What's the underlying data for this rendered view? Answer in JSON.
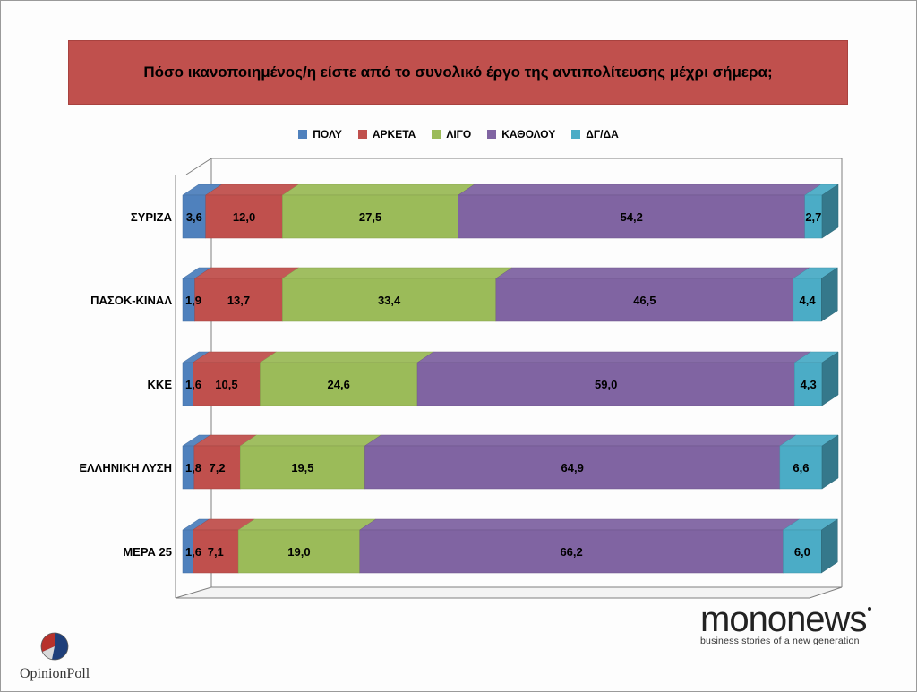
{
  "title": "Πόσο ικανοποιημένος/η είστε από το συνολικό έργο της αντιπολίτευσης μέχρι σήμερα;",
  "legend": [
    {
      "label": "ΠΟΛΥ",
      "color": "#4f81bd"
    },
    {
      "label": "ΑΡΚΕΤΑ",
      "color": "#c0504d"
    },
    {
      "label": "ΛΙΓΟ",
      "color": "#9bbb59"
    },
    {
      "label": "ΚΑΘΟΛΟΥ",
      "color": "#8064a2"
    },
    {
      "label": "ΔΓ/ΔΑ",
      "color": "#4bacc6"
    }
  ],
  "chart_data": {
    "type": "bar",
    "orientation": "horizontal",
    "stacked": true,
    "three_d": true,
    "categories": [
      "ΣΥΡΙΖΑ",
      "ΠΑΣΟΚ-ΚΙΝΑΛ",
      "ΚΚΕ",
      "ΕΛΛΗΝΙΚΗ ΛΥΣΗ",
      "ΜΕΡΑ 25"
    ],
    "series": [
      {
        "name": "ΠΟΛΥ",
        "color": "#4f81bd",
        "values": [
          3.6,
          1.9,
          1.6,
          1.8,
          1.6
        ],
        "labels": [
          "3,6",
          "1,9",
          "1,6",
          "1,8",
          "1,6"
        ]
      },
      {
        "name": "ΑΡΚΕΤΑ",
        "color": "#c0504d",
        "values": [
          12.0,
          13.7,
          10.5,
          7.2,
          7.1
        ],
        "labels": [
          "12,0",
          "13,7",
          "10,5",
          "7,2",
          "7,1"
        ]
      },
      {
        "name": "ΛΙΓΟ",
        "color": "#9bbb59",
        "values": [
          27.5,
          33.4,
          24.6,
          19.5,
          19.0
        ],
        "labels": [
          "27,5",
          "33,4",
          "24,6",
          "19,5",
          "19,0"
        ]
      },
      {
        "name": "ΚΑΘΟΛΟΥ",
        "color": "#8064a2",
        "values": [
          54.2,
          46.5,
          59.0,
          64.9,
          66.2
        ],
        "labels": [
          "54,2",
          "46,5",
          "59,0",
          "64,9",
          "66,2"
        ]
      },
      {
        "name": "ΔΓ/ΔΑ",
        "color": "#4bacc6",
        "values": [
          2.7,
          4.4,
          4.3,
          6.6,
          6.0
        ],
        "labels": [
          "2,7",
          "4,4",
          "4,3",
          "6,6",
          "6,0"
        ]
      }
    ],
    "xlim": [
      0,
      100
    ],
    "legend_position": "top",
    "grid": false
  },
  "branding": {
    "mononews_prefix": "mono",
    "mononews_suffix": "news",
    "mononews_tagline": "business stories of a new generation",
    "opinionpoll": "OpinionPoll"
  }
}
